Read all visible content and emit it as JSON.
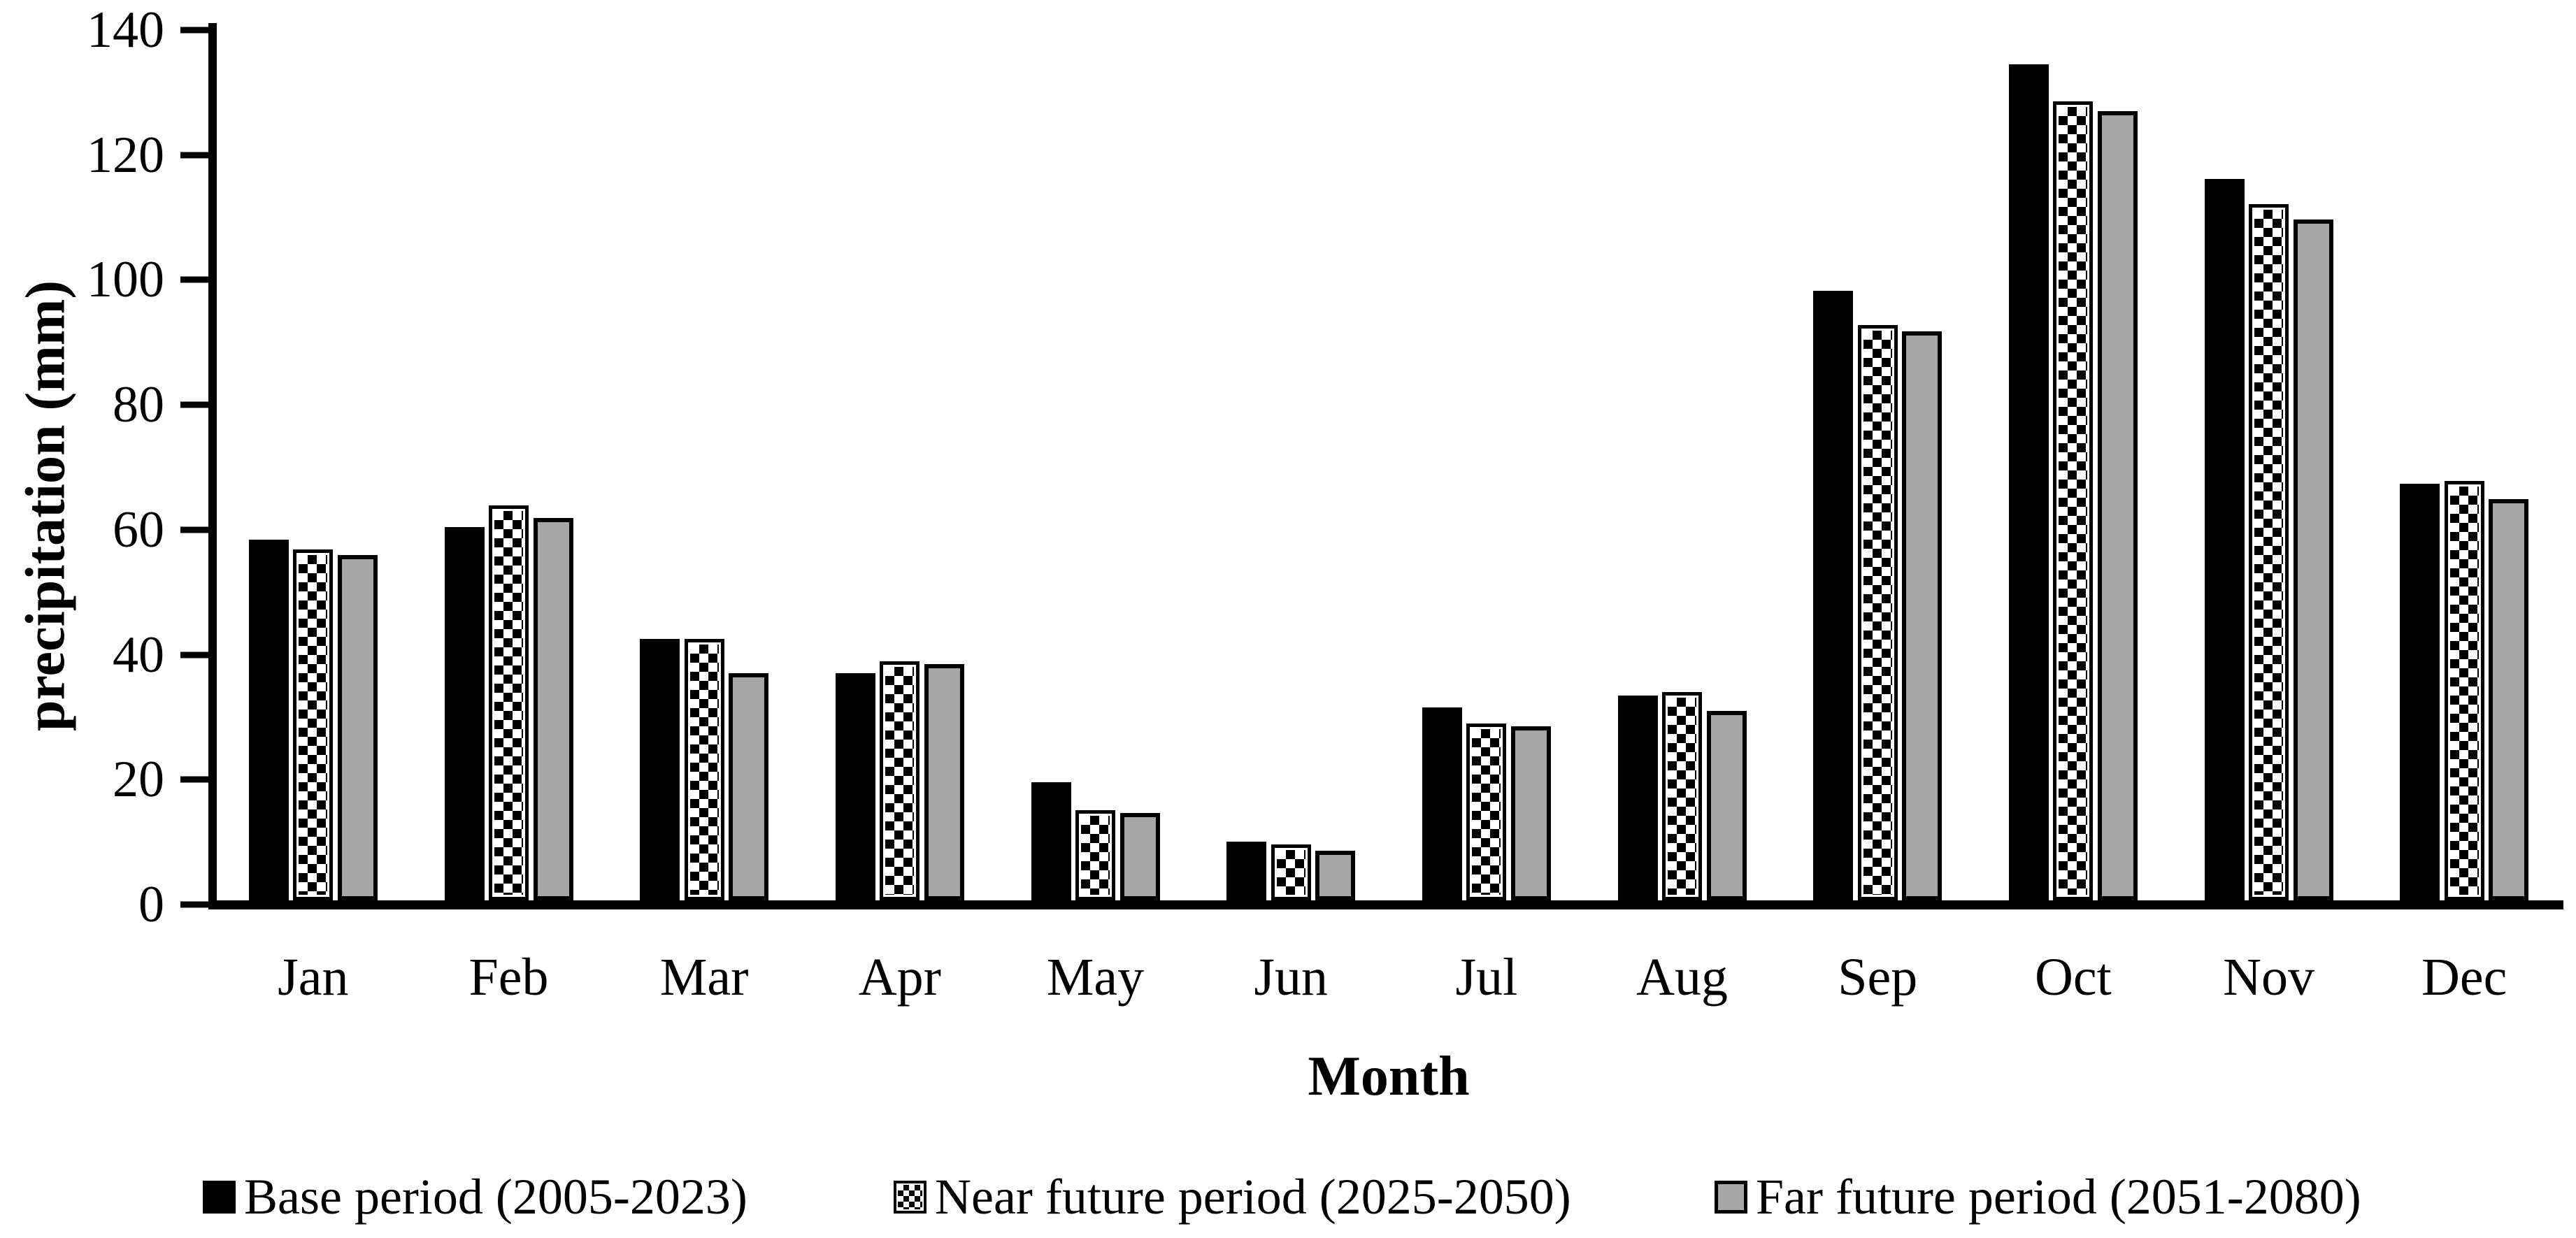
{
  "figure": {
    "background": "#ffffff",
    "bar_border_color": "#000000"
  },
  "chart_data": {
    "type": "bar",
    "title": "",
    "xlabel": "Month",
    "ylabel": "precipitation (mm)",
    "ylim": [
      0,
      140
    ],
    "ytick_step": 20,
    "yticks": [
      0,
      20,
      40,
      60,
      80,
      100,
      120,
      140
    ],
    "grid": false,
    "legend_position": "bottom",
    "categories": [
      "Jan",
      "Feb",
      "Mar",
      "Apr",
      "May",
      "Jun",
      "Jul",
      "Aug",
      "Sep",
      "Oct",
      "Nov",
      "Dec"
    ],
    "series": [
      {
        "name": "Base period (2005-2023)",
        "style": "solid-black",
        "color": "#000000",
        "values": [
          58,
          60,
          42,
          36.5,
          19,
          9.5,
          31,
          33,
          98,
          134.5,
          116,
          67
        ]
      },
      {
        "name": "Near future period (2025-2050)",
        "style": "checkerboard",
        "color": "#000000",
        "values": [
          56.5,
          63.5,
          42,
          38.5,
          14.5,
          9,
          28.5,
          33.5,
          92.5,
          128.5,
          112,
          67.5
        ]
      },
      {
        "name": "Far future period (2051-2080)",
        "style": "solid-gray",
        "color": "#a6a6a6",
        "values": [
          55.5,
          61.5,
          36.5,
          38,
          14,
          8,
          28,
          30.5,
          91.5,
          127,
          109.5,
          64.5
        ]
      }
    ]
  }
}
